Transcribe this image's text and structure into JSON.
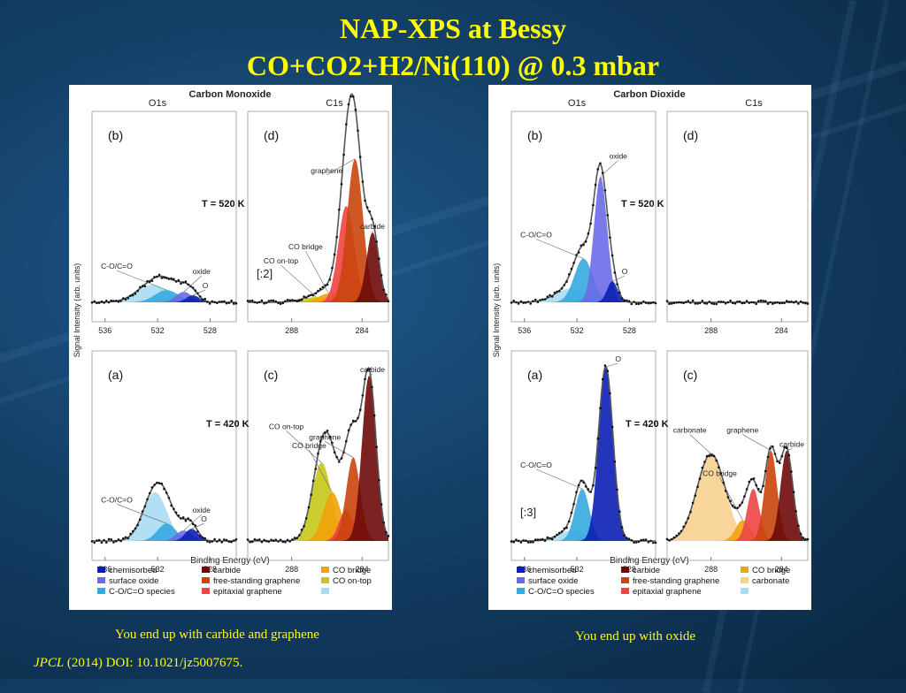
{
  "slide": {
    "title_line1": "NAP-XPS at Bessy",
    "title_line2": "CO+CO2+H2/Ni(110) @ 0.3 mbar",
    "caption_left": "You end up with carbide and graphene",
    "caption_right": "You end up with oxide",
    "reference_journal": "JPCL",
    "reference_rest": " (2014) DOI: 10.1021/jz5007675."
  },
  "colors": {
    "chemisorbed": "#0a1fb5",
    "surface_oxide": "#6a6ae8",
    "coc_species": "#36a8e0",
    "coc_species_light": "#a8dcf2",
    "carbide": "#6e0a0a",
    "free_graphene": "#c9450c",
    "epitaxial_graphene": "#ee4444",
    "co_bridge": "#f2a20c",
    "co_ontop": "#c6c81a",
    "carbonate": "#f6d090"
  },
  "chart_data": [
    {
      "type": "area",
      "title": "Carbon Monoxide",
      "ylabel": "Signal Intensity (arb. units)",
      "xlabel": "Binding Energy (eV)",
      "o1s_label": "O1s",
      "c1s_label": "C1s",
      "o1s_ticks": [
        "536",
        "532",
        "528"
      ],
      "c1s_ticks": [
        "288",
        "284"
      ],
      "o1s_range": [
        537,
        526
      ],
      "c1s_range": [
        290.5,
        282.5
      ],
      "panels": {
        "b": {
          "label": "(b)",
          "region": "O1s",
          "row": "top",
          "temperature": "T = 520 K",
          "annotations": [
            "C-O/C=O",
            "oxide",
            "O"
          ],
          "components": [
            {
              "key": "coc_species_light",
              "center": 532.4,
              "height": 0.1,
              "width": 1.2
            },
            {
              "key": "coc_species",
              "center": 531.3,
              "height": 0.07,
              "width": 0.9
            },
            {
              "key": "surface_oxide",
              "center": 530.0,
              "height": 0.06,
              "width": 0.6
            },
            {
              "key": "chemisorbed",
              "center": 529.3,
              "height": 0.04,
              "width": 0.5
            }
          ]
        },
        "d": {
          "label": "(d)",
          "region": "C1s",
          "row": "top",
          "scale": "[:2]",
          "annotations": [
            "graphene",
            "carbide",
            "CO on-top",
            "CO bridge"
          ],
          "components": [
            {
              "key": "co_ontop",
              "center": 286.6,
              "height": 0.03,
              "width": 0.8
            },
            {
              "key": "co_bridge",
              "center": 285.9,
              "height": 0.05,
              "width": 0.6
            },
            {
              "key": "epitaxial_graphene",
              "center": 284.9,
              "height": 0.55,
              "width": 0.45
            },
            {
              "key": "free_graphene",
              "center": 284.4,
              "height": 0.82,
              "width": 0.45
            },
            {
              "key": "carbide",
              "center": 283.4,
              "height": 0.4,
              "width": 0.35
            }
          ]
        },
        "a": {
          "label": "(a)",
          "region": "O1s",
          "row": "bottom",
          "temperature": "T = 420 K",
          "annotations": [
            "C-O/C=O",
            "oxide",
            "O"
          ],
          "components": [
            {
              "key": "coc_species_light",
              "center": 532.2,
              "height": 0.28,
              "width": 0.9
            },
            {
              "key": "coc_species",
              "center": 531.3,
              "height": 0.1,
              "width": 0.7
            },
            {
              "key": "surface_oxide",
              "center": 530.0,
              "height": 0.06,
              "width": 0.6
            },
            {
              "key": "chemisorbed",
              "center": 529.4,
              "height": 0.07,
              "width": 0.5
            }
          ]
        },
        "c": {
          "label": "(c)",
          "region": "C1s",
          "row": "bottom",
          "annotations": [
            "carbide",
            "graphene",
            "CO on-top",
            "CO bridge"
          ],
          "components": [
            {
              "key": "co_ontop",
              "center": 286.3,
              "height": 0.45,
              "width": 0.55
            },
            {
              "key": "co_bridge",
              "center": 285.7,
              "height": 0.28,
              "width": 0.5
            },
            {
              "key": "epitaxial_graphene",
              "center": 284.9,
              "height": 0.18,
              "width": 0.4
            },
            {
              "key": "free_graphene",
              "center": 284.5,
              "height": 0.48,
              "width": 0.4
            },
            {
              "key": "carbide",
              "center": 283.6,
              "height": 0.95,
              "width": 0.4
            }
          ]
        }
      },
      "legend": [
        {
          "key": "chemisorbed",
          "label": "chemisorbed"
        },
        {
          "key": "carbide",
          "label": "carbide"
        },
        {
          "key": "co_bridge",
          "label": "CO bridge"
        },
        {
          "key": "surface_oxide",
          "label": "surface oxide"
        },
        {
          "key": "free_graphene",
          "label": "free-standing graphene"
        },
        {
          "key": "co_ontop",
          "label": "CO on-top"
        },
        {
          "key": "coc_species",
          "label": "C-O/C=O species"
        },
        {
          "key": "epitaxial_graphene",
          "label": "epitaxial graphene"
        },
        {
          "key": "coc_species_light",
          "label": ""
        }
      ]
    },
    {
      "type": "area",
      "title": "Carbon Dioxide",
      "ylabel": "Signal Intensity (arb. units)",
      "xlabel": "Binding Energy (eV)",
      "o1s_label": "O1s",
      "c1s_label": "C1s",
      "o1s_ticks": [
        "536",
        "532",
        "528"
      ],
      "c1s_ticks": [
        "288",
        "284"
      ],
      "o1s_range": [
        537,
        526
      ],
      "c1s_range": [
        290.5,
        282.5
      ],
      "panels": {
        "b": {
          "label": "(b)",
          "region": "O1s",
          "row": "top",
          "temperature": "T = 520 K",
          "annotations": [
            "C-O/C=O",
            "oxide",
            "O"
          ],
          "components": [
            {
              "key": "coc_species_light",
              "center": 532.4,
              "height": 0.08,
              "width": 1.2
            },
            {
              "key": "coc_species",
              "center": 531.5,
              "height": 0.25,
              "width": 0.7
            },
            {
              "key": "surface_oxide",
              "center": 530.2,
              "height": 0.72,
              "width": 0.5
            },
            {
              "key": "chemisorbed",
              "center": 529.3,
              "height": 0.12,
              "width": 0.4
            }
          ]
        },
        "d": {
          "label": "(d)",
          "region": "C1s",
          "row": "top",
          "annotations": [],
          "components": []
        },
        "a": {
          "label": "(a)",
          "region": "O1s",
          "row": "bottom",
          "temperature": "T = 420 K",
          "scale": "[:3]",
          "annotations": [
            "C-O/C=O",
            "O"
          ],
          "components": [
            {
              "key": "coc_species_light",
              "center": 532.4,
              "height": 0.06,
              "width": 1.0
            },
            {
              "key": "coc_species",
              "center": 531.6,
              "height": 0.3,
              "width": 0.55
            },
            {
              "key": "chemisorbed",
              "center": 529.8,
              "height": 1.0,
              "width": 0.55
            }
          ]
        },
        "c": {
          "label": "(c)",
          "region": "C1s",
          "row": "bottom",
          "annotations": [
            "carbonate",
            "graphene",
            "carbide",
            "CO bridge"
          ],
          "components": [
            {
              "key": "carbonate",
              "center": 288.0,
              "height": 0.5,
              "width": 0.8
            },
            {
              "key": "co_bridge",
              "center": 286.2,
              "height": 0.12,
              "width": 0.4
            },
            {
              "key": "epitaxial_graphene",
              "center": 285.6,
              "height": 0.3,
              "width": 0.35
            },
            {
              "key": "free_graphene",
              "center": 284.6,
              "height": 0.52,
              "width": 0.35
            },
            {
              "key": "carbide",
              "center": 283.7,
              "height": 0.52,
              "width": 0.35
            }
          ]
        }
      },
      "legend": [
        {
          "key": "chemisorbed",
          "label": "chemisorbed"
        },
        {
          "key": "carbide",
          "label": "carbide"
        },
        {
          "key": "co_bridge",
          "label": "CO bridge"
        },
        {
          "key": "surface_oxide",
          "label": "surface oxide"
        },
        {
          "key": "free_graphene",
          "label": "free-standing graphene"
        },
        {
          "key": "carbonate",
          "label": "carbonate"
        },
        {
          "key": "coc_species",
          "label": "C-O/C=O species"
        },
        {
          "key": "epitaxial_graphene",
          "label": "epitaxial graphene"
        },
        {
          "key": "coc_species_light",
          "label": ""
        }
      ]
    }
  ]
}
